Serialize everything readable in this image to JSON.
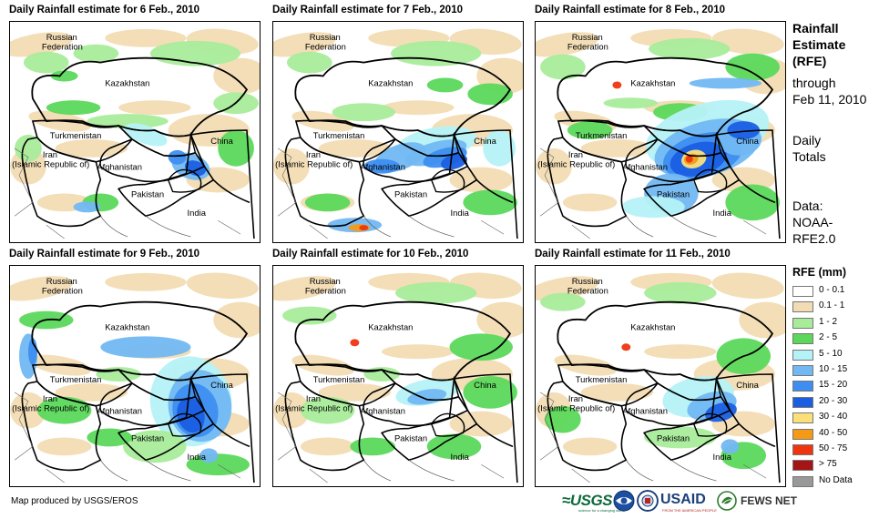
{
  "panels": [
    {
      "title": "Daily Rainfall estimate for 6 Feb., 2010",
      "rain": "p6"
    },
    {
      "title": "Daily Rainfall estimate for 7 Feb., 2010",
      "rain": "p7"
    },
    {
      "title": "Daily Rainfall estimate for 8 Feb., 2010",
      "rain": "p8"
    },
    {
      "title": "Daily Rainfall estimate for 9 Feb., 2010",
      "rain": "p9"
    },
    {
      "title": "Daily Rainfall estimate for 10 Feb., 2010",
      "rain": "p10"
    },
    {
      "title": "Daily Rainfall estimate for 11 Feb., 2010",
      "rain": "p11"
    }
  ],
  "map_labels": {
    "russia_1": "Russian",
    "russia_2": "Federation",
    "kazakhstan": "Kazakhstan",
    "turkmenistan": "Turkmenistan",
    "china": "China",
    "iran_1": "Iran",
    "iran_2": "(Islamic Republic of)",
    "afghanistan": "Afghanistan",
    "pakistan": "Pakistan",
    "india": "India"
  },
  "side": {
    "title_1": "Rainfall",
    "title_2": "Estimate",
    "title_3": "(RFE)",
    "through_1": "through",
    "through_2": "Feb 11, 2010",
    "daily_1": "Daily",
    "daily_2": "Totals",
    "data_1": "Data:",
    "data_2": "NOAA-",
    "data_3": "RFE2.0"
  },
  "legend": {
    "title": "RFE (mm)",
    "items": [
      {
        "label": "0 - 0.1",
        "color": "#ffffff"
      },
      {
        "label": "0.1 - 1",
        "color": "#f2dcb3"
      },
      {
        "label": "1 - 2",
        "color": "#a8ec9a"
      },
      {
        "label": "2 - 5",
        "color": "#5bd85b"
      },
      {
        "label": "5 - 10",
        "color": "#b5f2f7"
      },
      {
        "label": "10 - 15",
        "color": "#72b8f3"
      },
      {
        "label": "15 - 20",
        "color": "#3d8ef0"
      },
      {
        "label": "20 - 30",
        "color": "#1a5fe2"
      },
      {
        "label": "30 - 40",
        "color": "#fbe07a"
      },
      {
        "label": "40 - 50",
        "color": "#f59a16"
      },
      {
        "label": "50 - 75",
        "color": "#ee3510"
      },
      {
        "label": "> 75",
        "color": "#a41515"
      },
      {
        "label": "No Data",
        "color": "#999999"
      }
    ]
  },
  "credit": "Map produced by USGS/EROS",
  "logos": {
    "usgs": "≈USGS",
    "usgs_sub": "science for a changing world",
    "usaid": "USAID",
    "usaid_sub": "FROM THE AMERICAN PEOPLE",
    "fews": "FEWS NET",
    "noaa_icon": "noaa-seal-icon",
    "seal_icon": "agency-seal-icon",
    "fews_icon": "globe-leaf-icon"
  }
}
